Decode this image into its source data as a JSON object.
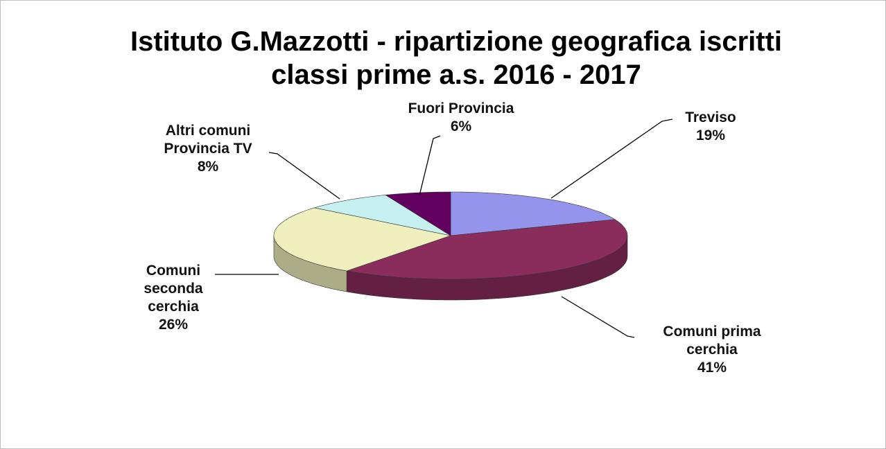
{
  "chart_data": {
    "type": "pie",
    "title": "Istituto G.Mazzotti - ripartizione geografica iscritti classi prime a.s. 2016 - 2017",
    "categories": [
      "Treviso",
      "Comuni prima cerchia",
      "Comuni seconda cerchia",
      "Altri comuni Provincia TV",
      "Fuori Provincia"
    ],
    "values": [
      19,
      41,
      26,
      8,
      6
    ],
    "value_labels": [
      "19%",
      "41%",
      "26%",
      "8%",
      "6%"
    ],
    "colors": [
      "#9494ec",
      "#8a2d5c",
      "#efefbd",
      "#c6f0f0",
      "#620060"
    ]
  }
}
